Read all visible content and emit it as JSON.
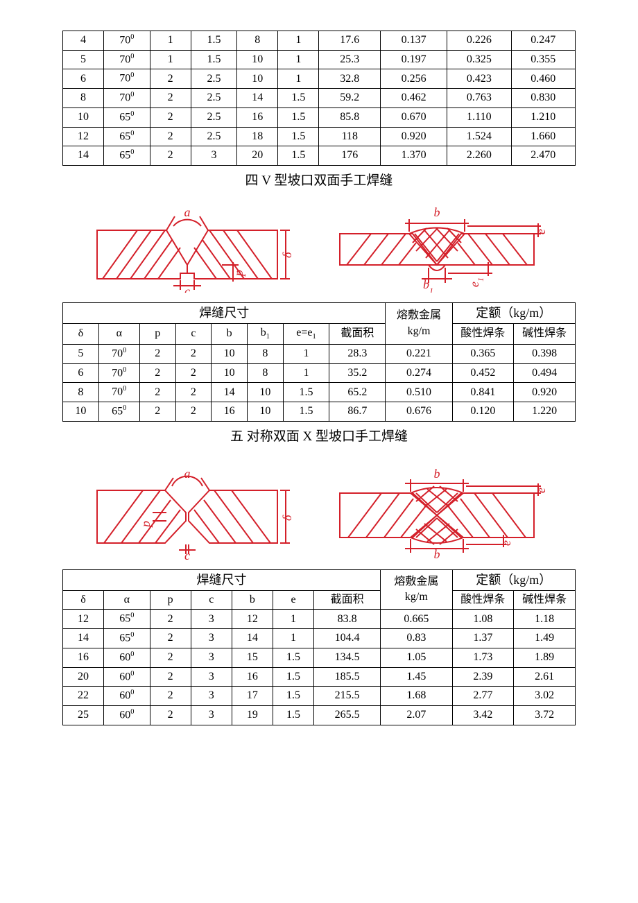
{
  "diagram": {
    "stroke": "#d4202a",
    "hatch": "#d4202a",
    "labels": {
      "a": "a",
      "b": "b",
      "b1": "b1",
      "c": "c",
      "delta": "δ",
      "p": "p",
      "e": "e",
      "e1": "e1"
    }
  },
  "section4": {
    "title": "四   V 型坡口双面手工焊缝",
    "topTable": {
      "rows": [
        [
          "4",
          "70⁰",
          "1",
          "1.5",
          "8",
          "1",
          "17.6",
          "0.137",
          "0.226",
          "0.247"
        ],
        [
          "5",
          "70⁰",
          "1",
          "1.5",
          "10",
          "1",
          "25.3",
          "0.197",
          "0.325",
          "0.355"
        ],
        [
          "6",
          "70⁰",
          "2",
          "2.5",
          "10",
          "1",
          "32.8",
          "0.256",
          "0.423",
          "0.460"
        ],
        [
          "8",
          "70⁰",
          "2",
          "2.5",
          "14",
          "1.5",
          "59.2",
          "0.462",
          "0.763",
          "0.830"
        ],
        [
          "10",
          "65⁰",
          "2",
          "2.5",
          "16",
          "1.5",
          "85.8",
          "0.670",
          "1.110",
          "1.210"
        ],
        [
          "12",
          "65⁰",
          "2",
          "2.5",
          "18",
          "1.5",
          "118",
          "0.920",
          "1.524",
          "1.660"
        ],
        [
          "14",
          "65⁰",
          "2",
          "3",
          "20",
          "1.5",
          "176",
          "1.370",
          "2.260",
          "2.470"
        ]
      ]
    },
    "mainTable": {
      "colWidths": [
        "7%",
        "8%",
        "7%",
        "7%",
        "7%",
        "7%",
        "9%",
        "11%",
        "13%",
        "12%",
        "12%"
      ],
      "head": {
        "group1": "焊缝尺寸",
        "group2_l1": "熔敷金属",
        "group2_l2": "kg/m",
        "group3": "定额（kg/m）",
        "sub": [
          "δ",
          "α",
          "p",
          "c",
          "b",
          "b₁",
          "e=e₁",
          "截面积",
          "酸性焊条",
          "碱性焊条"
        ]
      },
      "rows": [
        [
          "5",
          "70⁰",
          "2",
          "2",
          "10",
          "8",
          "1",
          "28.3",
          "0.221",
          "0.365",
          "0.398"
        ],
        [
          "6",
          "70⁰",
          "2",
          "2",
          "10",
          "8",
          "1",
          "35.2",
          "0.274",
          "0.452",
          "0.494"
        ],
        [
          "8",
          "70⁰",
          "2",
          "2",
          "14",
          "10",
          "1.5",
          "65.2",
          "0.510",
          "0.841",
          "0.920"
        ],
        [
          "10",
          "65⁰",
          "2",
          "2",
          "16",
          "10",
          "1.5",
          "86.7",
          "0.676",
          "0.120",
          "1.220"
        ]
      ]
    }
  },
  "section5": {
    "title": "五   对称双面 X 型坡口手工焊缝",
    "mainTable": {
      "colWidths": [
        "8%",
        "9%",
        "8%",
        "8%",
        "8%",
        "8%",
        "13%",
        "14%",
        "12%",
        "12%"
      ],
      "head": {
        "group1": "焊缝尺寸",
        "group2_l1": "熔敷金属",
        "group2_l2": "kg/m",
        "group3": "定额（kg/m）",
        "sub": [
          "δ",
          "α",
          "p",
          "c",
          "b",
          "e",
          "截面积",
          "酸性焊条",
          "碱性焊条"
        ]
      },
      "rows": [
        [
          "12",
          "65⁰",
          "2",
          "3",
          "12",
          "1",
          "83.8",
          "0.665",
          "1.08",
          "1.18"
        ],
        [
          "14",
          "65⁰",
          "2",
          "3",
          "14",
          "1",
          "104.4",
          "0.83",
          "1.37",
          "1.49"
        ],
        [
          "16",
          "60⁰",
          "2",
          "3",
          "15",
          "1.5",
          "134.5",
          "1.05",
          "1.73",
          "1.89"
        ],
        [
          "20",
          "60⁰",
          "2",
          "3",
          "16",
          "1.5",
          "185.5",
          "1.45",
          "2.39",
          "2.61"
        ],
        [
          "22",
          "60⁰",
          "2",
          "3",
          "17",
          "1.5",
          "215.5",
          "1.68",
          "2.77",
          "3.02"
        ],
        [
          "25",
          "60⁰",
          "2",
          "3",
          "19",
          "1.5",
          "265.5",
          "2.07",
          "3.42",
          "3.72"
        ]
      ]
    }
  }
}
